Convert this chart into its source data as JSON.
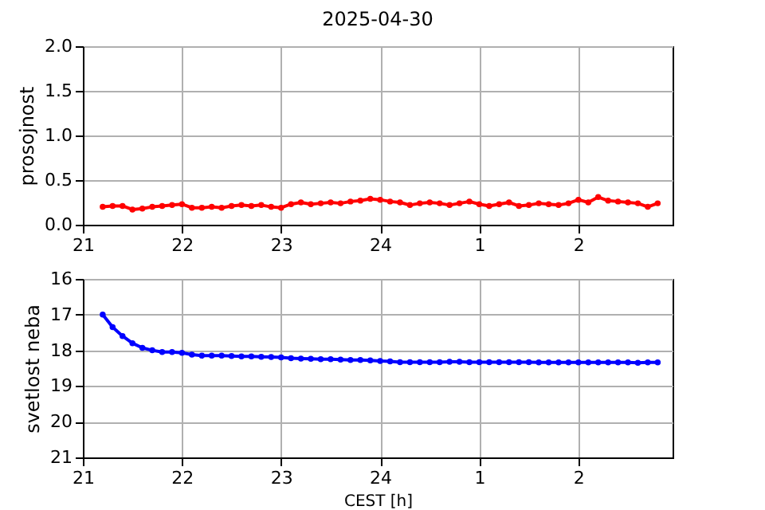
{
  "chart_data": [
    {
      "type": "line",
      "title": "2025-04-30",
      "ylabel": "prosojnost",
      "marker": "circle",
      "line_style": "solid",
      "grid": true,
      "x": [
        "2025-04-30T21:12",
        "2025-04-30T21:18",
        "2025-04-30T21:24",
        "2025-04-30T21:30",
        "2025-04-30T21:36",
        "2025-04-30T21:42",
        "2025-04-30T21:48",
        "2025-04-30T21:54",
        "2025-04-30T22:00",
        "2025-04-30T22:06",
        "2025-04-30T22:12",
        "2025-04-30T22:18",
        "2025-04-30T22:24",
        "2025-04-30T22:30",
        "2025-04-30T22:36",
        "2025-04-30T22:42",
        "2025-04-30T22:48",
        "2025-04-30T22:54",
        "2025-04-30T23:00",
        "2025-04-30T23:06",
        "2025-04-30T23:12",
        "2025-04-30T23:18",
        "2025-04-30T23:24",
        "2025-04-30T23:30",
        "2025-04-30T23:36",
        "2025-04-30T23:42",
        "2025-04-30T23:48",
        "2025-04-30T23:54",
        "2025-05-01T00:00",
        "2025-05-01T00:06",
        "2025-05-01T00:12",
        "2025-05-01T00:18",
        "2025-05-01T00:24",
        "2025-05-01T00:30",
        "2025-05-01T00:36",
        "2025-05-01T00:42",
        "2025-05-01T00:48",
        "2025-05-01T00:54",
        "2025-05-01T01:00",
        "2025-05-01T01:06",
        "2025-05-01T01:12",
        "2025-05-01T01:18",
        "2025-05-01T01:24",
        "2025-05-01T01:30",
        "2025-05-01T01:36",
        "2025-05-01T01:42",
        "2025-05-01T01:48",
        "2025-05-01T01:54",
        "2025-05-01T02:00",
        "2025-05-01T02:06",
        "2025-05-01T02:12",
        "2025-05-01T02:18",
        "2025-05-01T02:24",
        "2025-05-01T02:30",
        "2025-05-01T02:36",
        "2025-05-01T02:42",
        "2025-05-01T02:48"
      ],
      "series": [
        {
          "color": "#ff0000",
          "values": [
            0.2,
            0.21,
            0.21,
            0.17,
            0.18,
            0.2,
            0.21,
            0.22,
            0.23,
            0.19,
            0.19,
            0.2,
            0.19,
            0.21,
            0.22,
            0.21,
            0.22,
            0.2,
            0.19,
            0.23,
            0.25,
            0.23,
            0.24,
            0.25,
            0.24,
            0.26,
            0.27,
            0.29,
            0.28,
            0.26,
            0.25,
            0.22,
            0.24,
            0.25,
            0.24,
            0.22,
            0.24,
            0.26,
            0.23,
            0.21,
            0.23,
            0.25,
            0.21,
            0.22,
            0.24,
            0.23,
            0.22,
            0.24,
            0.28,
            0.25,
            0.31,
            0.27,
            0.26,
            0.25,
            0.24,
            0.2,
            0.24
          ]
        }
      ],
      "xlim": [
        "2025-04-30T21:00",
        "2025-05-01T02:57"
      ],
      "xticks": [
        {
          "value": "2025-04-30T21:00",
          "label": "21"
        },
        {
          "value": "2025-04-30T22:00",
          "label": "22"
        },
        {
          "value": "2025-04-30T23:00",
          "label": "23"
        },
        {
          "value": "2025-05-01T00:00",
          "label": "24"
        },
        {
          "value": "2025-05-01T01:00",
          "label": "1"
        },
        {
          "value": "2025-05-01T02:00",
          "label": "2"
        }
      ],
      "ylim": [
        0,
        2
      ],
      "yticks": [
        {
          "value": 0,
          "label": "0.0"
        },
        {
          "value": 0.5,
          "label": "0.5"
        },
        {
          "value": 1,
          "label": "1.0"
        },
        {
          "value": 1.5,
          "label": "1.5"
        },
        {
          "value": 2,
          "label": "2.0"
        }
      ]
    },
    {
      "type": "line",
      "xlabel": "CEST [h]",
      "ylabel": "svetlost neba",
      "marker": "circle",
      "line_style": "solid",
      "grid": true,
      "x": [
        "2025-04-30T21:12",
        "2025-04-30T21:18",
        "2025-04-30T21:24",
        "2025-04-30T21:30",
        "2025-04-30T21:36",
        "2025-04-30T21:42",
        "2025-04-30T21:48",
        "2025-04-30T21:54",
        "2025-04-30T22:00",
        "2025-04-30T22:06",
        "2025-04-30T22:12",
        "2025-04-30T22:18",
        "2025-04-30T22:24",
        "2025-04-30T22:30",
        "2025-04-30T22:36",
        "2025-04-30T22:42",
        "2025-04-30T22:48",
        "2025-04-30T22:54",
        "2025-04-30T23:00",
        "2025-04-30T23:06",
        "2025-04-30T23:12",
        "2025-04-30T23:18",
        "2025-04-30T23:24",
        "2025-04-30T23:30",
        "2025-04-30T23:36",
        "2025-04-30T23:42",
        "2025-04-30T23:48",
        "2025-04-30T23:54",
        "2025-05-01T00:00",
        "2025-05-01T00:06",
        "2025-05-01T00:12",
        "2025-05-01T00:18",
        "2025-05-01T00:24",
        "2025-05-01T00:30",
        "2025-05-01T00:36",
        "2025-05-01T00:42",
        "2025-05-01T00:48",
        "2025-05-01T00:54",
        "2025-05-01T01:00",
        "2025-05-01T01:06",
        "2025-05-01T01:12",
        "2025-05-01T01:18",
        "2025-05-01T01:24",
        "2025-05-01T01:30",
        "2025-05-01T01:36",
        "2025-05-01T01:42",
        "2025-05-01T01:48",
        "2025-05-01T01:54",
        "2025-05-01T02:00",
        "2025-05-01T02:06",
        "2025-05-01T02:12",
        "2025-05-01T02:18",
        "2025-05-01T02:24",
        "2025-05-01T02:30",
        "2025-05-01T02:36",
        "2025-05-01T02:42",
        "2025-05-01T02:48"
      ],
      "series": [
        {
          "color": "#0000ff",
          "values": [
            17.0,
            17.35,
            17.6,
            17.8,
            17.93,
            18.0,
            18.05,
            18.05,
            18.07,
            18.12,
            18.15,
            18.15,
            18.15,
            18.16,
            18.17,
            18.17,
            18.18,
            18.19,
            18.2,
            18.22,
            18.23,
            18.24,
            18.25,
            18.25,
            18.26,
            18.27,
            18.27,
            18.28,
            18.3,
            18.31,
            18.33,
            18.33,
            18.33,
            18.33,
            18.33,
            18.32,
            18.32,
            18.33,
            18.33,
            18.33,
            18.33,
            18.33,
            18.33,
            18.33,
            18.34,
            18.34,
            18.34,
            18.34,
            18.34,
            18.34,
            18.34,
            18.34,
            18.34,
            18.34,
            18.35,
            18.34,
            18.34
          ]
        }
      ],
      "xlim": [
        "2025-04-30T21:00",
        "2025-05-01T02:57"
      ],
      "xticks": [
        {
          "value": "2025-04-30T21:00",
          "label": "21"
        },
        {
          "value": "2025-04-30T22:00",
          "label": "22"
        },
        {
          "value": "2025-04-30T23:00",
          "label": "23"
        },
        {
          "value": "2025-05-01T00:00",
          "label": "24"
        },
        {
          "value": "2025-05-01T01:00",
          "label": "1"
        },
        {
          "value": "2025-05-01T02:00",
          "label": "2"
        }
      ],
      "ylim": [
        21,
        16
      ],
      "yticks": [
        16,
        17,
        18,
        19,
        20,
        21
      ]
    }
  ]
}
